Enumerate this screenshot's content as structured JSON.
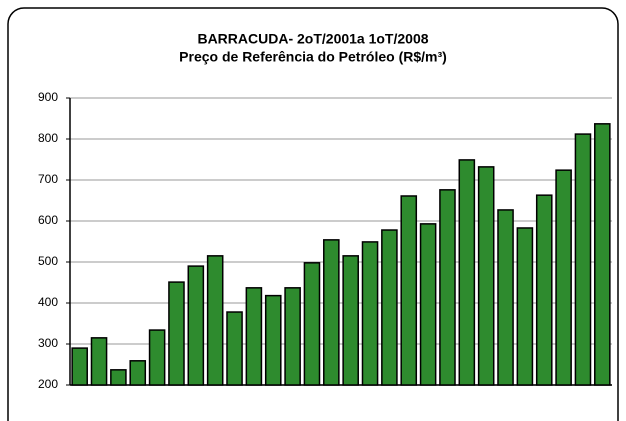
{
  "chart_data": {
    "type": "bar",
    "title": "BARRACUDA- 2oT/2001a 1oT/2008",
    "subtitle": "Preço de Referência do Petróleo (R$/m³)",
    "categories": [
      null,
      null,
      null,
      null,
      null,
      null,
      null,
      null,
      null,
      null,
      null,
      null,
      null,
      null,
      null,
      null,
      null,
      null,
      null,
      null,
      null,
      null,
      null,
      null,
      null,
      null,
      null,
      null
    ],
    "values": [
      290,
      315,
      237,
      259,
      334,
      451,
      490,
      515,
      378,
      437,
      418,
      437,
      498,
      554,
      515,
      549,
      578,
      661,
      593,
      676,
      749,
      732,
      627,
      583,
      663,
      724,
      812,
      837
    ],
    "color": "#2e8b2e",
    "ylim": [
      200,
      900
    ],
    "yticks": [
      200,
      300,
      400,
      500,
      600,
      700,
      800,
      900
    ],
    "grid": true
  }
}
